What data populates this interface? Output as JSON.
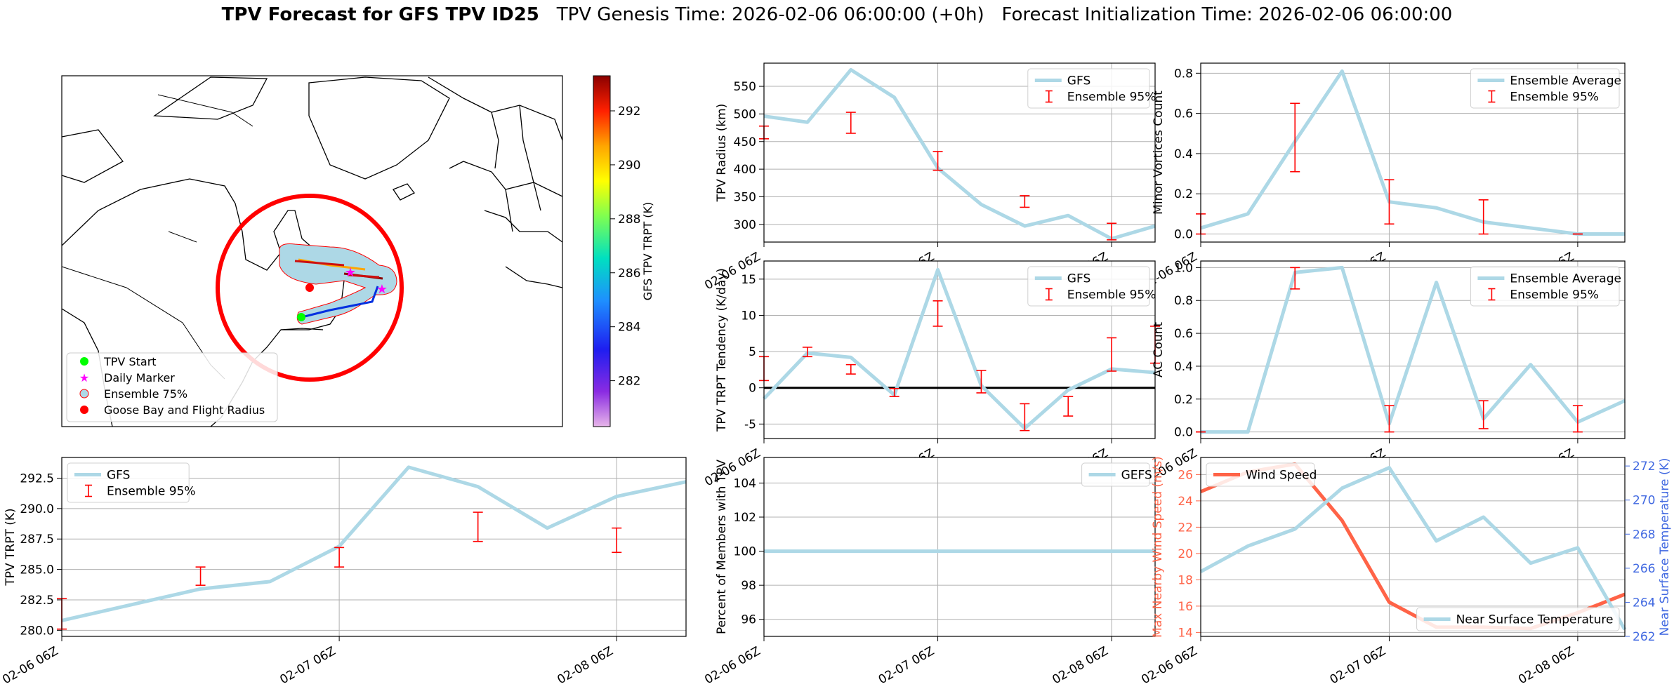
{
  "title": {
    "bold": "TPV Forecast for GFS TPV ID25",
    "genesis": "TPV Genesis Time: 2026-02-06 06:00:00 (+0h)",
    "init": "Forecast Initialization Time: 2026-02-06 06:00:00"
  },
  "colors": {
    "line": "#add8e6",
    "error": "#ff0000",
    "wind": "#ff6347",
    "temp_axis": "#4169e1",
    "zero": "#000000"
  },
  "map": {
    "legend": [
      "TPV Start",
      "Daily Marker",
      "Ensemble 75%",
      "Goose Bay and Flight Radius"
    ],
    "colorbar": {
      "label": "GFS TPV TRPT (K)",
      "ticks": [
        282,
        284,
        286,
        288,
        290,
        292
      ],
      "range": [
        280.3,
        293.3
      ]
    }
  },
  "chart_data": [
    {
      "id": "radius",
      "type": "line",
      "ylabel": "TPV Radius (km)",
      "xticks": [
        "02-06 06Z",
        "02-07 06Z",
        "02-08 06Z"
      ],
      "xtick_pos": [
        0,
        4,
        8
      ],
      "xlim": [
        0,
        9
      ],
      "ylim": [
        268,
        592
      ],
      "yticks": [
        300,
        350,
        400,
        450,
        500,
        550
      ],
      "legend": [
        "GFS",
        "Ensemble 95%"
      ],
      "legend_pos": "upper-right",
      "series": [
        {
          "name": "GFS",
          "x": [
            0,
            1,
            2,
            3,
            4,
            5,
            6,
            7,
            8,
            9
          ],
          "y": [
            496,
            485,
            580,
            530,
            402,
            336,
            297,
            316,
            274,
            297
          ]
        }
      ],
      "errorbars": [
        {
          "x": 0,
          "lo": 455,
          "hi": 478
        },
        {
          "x": 2,
          "lo": 465,
          "hi": 503
        },
        {
          "x": 4,
          "lo": 398,
          "hi": 432
        },
        {
          "x": 6,
          "lo": 331,
          "hi": 352
        },
        {
          "x": 8,
          "lo": 272,
          "hi": 302
        }
      ]
    },
    {
      "id": "minor",
      "type": "line",
      "ylabel": "Minor Vortices Count",
      "xticks": [
        "02-06 06Z",
        "02-07 06Z",
        "02-08 06Z"
      ],
      "xtick_pos": [
        0,
        4,
        8
      ],
      "xlim": [
        0,
        9
      ],
      "ylim": [
        -0.04,
        0.85
      ],
      "yticks": [
        0.0,
        0.2,
        0.4,
        0.6,
        0.8
      ],
      "legend": [
        "Ensemble Average",
        "Ensemble 95%"
      ],
      "legend_pos": "upper-right",
      "series": [
        {
          "name": "Ensemble Average",
          "x": [
            0,
            1,
            2,
            3,
            4,
            5,
            6,
            7,
            8,
            9
          ],
          "y": [
            0.03,
            0.1,
            0.46,
            0.81,
            0.16,
            0.13,
            0.06,
            0.03,
            0.0,
            0.0
          ]
        }
      ],
      "errorbars": [
        {
          "x": 0,
          "lo": 0.0,
          "hi": 0.1
        },
        {
          "x": 2,
          "lo": 0.31,
          "hi": 0.65
        },
        {
          "x": 4,
          "lo": 0.05,
          "hi": 0.27
        },
        {
          "x": 6,
          "lo": 0.0,
          "hi": 0.17
        },
        {
          "x": 8,
          "lo": 0.0,
          "hi": 0.0
        }
      ]
    },
    {
      "id": "tendency",
      "type": "line",
      "ylabel": "TPV TRPT Tendency (K/day)",
      "xticks": [
        "02-06 06Z",
        "02-07 06Z",
        "02-08 06Z"
      ],
      "xtick_pos": [
        0,
        4,
        8
      ],
      "xlim": [
        0,
        9
      ],
      "ylim": [
        -7,
        17.5
      ],
      "yticks": [
        -5,
        0,
        5,
        10,
        15
      ],
      "zero_line": true,
      "legend": [
        "GFS",
        "Ensemble 95%"
      ],
      "legend_pos": "upper-right",
      "series": [
        {
          "name": "GFS",
          "x": [
            0,
            1,
            2,
            3,
            4,
            5,
            6,
            7,
            8,
            9
          ],
          "y": [
            -1.5,
            4.8,
            4.2,
            -1.0,
            16.3,
            0.3,
            -5.6,
            -0.3,
            2.6,
            2.1
          ]
        }
      ],
      "errorbars": [
        {
          "x": 0,
          "lo": 1.0,
          "hi": 4.3
        },
        {
          "x": 1,
          "lo": 4.3,
          "hi": 5.6
        },
        {
          "x": 2,
          "lo": 1.9,
          "hi": 3.2
        },
        {
          "x": 3,
          "lo": -1.2,
          "hi": -0.1
        },
        {
          "x": 4,
          "lo": 8.5,
          "hi": 12.0
        },
        {
          "x": 5,
          "lo": -0.7,
          "hi": 2.4
        },
        {
          "x": 6,
          "lo": -5.9,
          "hi": -2.2
        },
        {
          "x": 7,
          "lo": -3.9,
          "hi": -1.2
        },
        {
          "x": 8,
          "lo": 2.3,
          "hi": 6.9
        },
        {
          "x": 9,
          "lo": 3.4,
          "hi": 8.5
        }
      ]
    },
    {
      "id": "ac",
      "type": "line",
      "ylabel": "AC Count",
      "xticks": [
        "02-06 06Z",
        "02-07 06Z",
        "02-08 06Z"
      ],
      "xtick_pos": [
        0,
        4,
        8
      ],
      "xlim": [
        0,
        9
      ],
      "ylim": [
        -0.04,
        1.04
      ],
      "yticks": [
        0.0,
        0.2,
        0.4,
        0.6,
        0.8,
        1.0
      ],
      "legend": [
        "Ensemble Average",
        "Ensemble 95%"
      ],
      "legend_pos": "upper-right",
      "series": [
        {
          "name": "Ensemble Average",
          "x": [
            0,
            1,
            2,
            3,
            4,
            5,
            6,
            7,
            8,
            9
          ],
          "y": [
            0.0,
            0.0,
            0.97,
            1.0,
            0.05,
            0.91,
            0.08,
            0.41,
            0.06,
            0.19
          ]
        }
      ],
      "errorbars": [
        {
          "x": 0,
          "lo": 0.0,
          "hi": 0.0
        },
        {
          "x": 2,
          "lo": 0.87,
          "hi": 1.0
        },
        {
          "x": 4,
          "lo": 0.0,
          "hi": 0.16
        },
        {
          "x": 6,
          "lo": 0.02,
          "hi": 0.19
        },
        {
          "x": 8,
          "lo": 0.0,
          "hi": 0.16
        }
      ]
    },
    {
      "id": "trpt",
      "type": "line",
      "ylabel": "TPV TRPT (K)",
      "xticks": [
        "02-06 06Z",
        "02-07 06Z",
        "02-08 06Z"
      ],
      "xtick_pos": [
        0,
        4,
        8
      ],
      "xlim": [
        0,
        9
      ],
      "ylim": [
        279.5,
        294.2
      ],
      "yticks": [
        280.0,
        282.5,
        285.0,
        287.5,
        290.0,
        292.5
      ],
      "legend": [
        "GFS",
        "Ensemble 95%"
      ],
      "legend_pos": "upper-left",
      "series": [
        {
          "name": "GFS",
          "x": [
            0,
            1,
            2,
            3,
            4,
            5,
            6,
            7,
            8,
            9
          ],
          "y": [
            280.8,
            282.1,
            283.4,
            284.0,
            286.9,
            293.4,
            291.8,
            288.4,
            291.0,
            292.2
          ]
        }
      ],
      "errorbars": [
        {
          "x": 0,
          "lo": 280.1,
          "hi": 282.6
        },
        {
          "x": 2,
          "lo": 283.7,
          "hi": 285.2
        },
        {
          "x": 4,
          "lo": 285.2,
          "hi": 286.8
        },
        {
          "x": 6,
          "lo": 287.3,
          "hi": 289.7
        },
        {
          "x": 8,
          "lo": 286.4,
          "hi": 288.4
        }
      ]
    },
    {
      "id": "percent",
      "type": "line",
      "ylabel": "Percent of Members with TPV",
      "xticks": [
        "02-06 06Z",
        "02-07 06Z",
        "02-08 06Z"
      ],
      "xtick_pos": [
        0,
        4,
        8
      ],
      "xlim": [
        0,
        9
      ],
      "ylim": [
        95,
        105.5
      ],
      "yticks": [
        96,
        98,
        100,
        102,
        104
      ],
      "legend": [
        "GEFS"
      ],
      "legend_pos": "upper-right",
      "series": [
        {
          "name": "GEFS",
          "x": [
            0,
            9
          ],
          "y": [
            100,
            100
          ]
        }
      ],
      "errorbars": []
    },
    {
      "id": "wind",
      "type": "line",
      "ylabel": "Max Nearby Wind Speed (m/s)",
      "y2label": "Near Surface Temperature (K)",
      "xticks": [
        "02-06 06Z",
        "02-07 06Z",
        "02-08 06Z"
      ],
      "xtick_pos": [
        0,
        4,
        8
      ],
      "xlim": [
        0,
        9
      ],
      "ylim": [
        13.7,
        27.3
      ],
      "yticks": [
        14,
        16,
        18,
        20,
        22,
        24,
        26
      ],
      "y2lim": [
        262,
        272.5
      ],
      "y2ticks": [
        262,
        264,
        266,
        268,
        270,
        272
      ],
      "legend": [
        "Wind Speed"
      ],
      "legend_pos": "upper-left",
      "legend2": [
        "Near Surface Temperature"
      ],
      "legend2_pos": "lower-right",
      "series": [
        {
          "name": "Wind Speed",
          "axis": "left",
          "x": [
            0,
            1,
            2,
            3,
            4,
            5,
            6,
            7,
            8,
            9
          ],
          "y": [
            24.7,
            26.2,
            26.8,
            22.5,
            16.3,
            14.4,
            14.4,
            14.3,
            15.5,
            16.9
          ]
        },
        {
          "name": "Near Surface Temperature",
          "axis": "right",
          "x": [
            0,
            1,
            2,
            3,
            4,
            5,
            6,
            7,
            8,
            9
          ],
          "y": [
            265.8,
            267.3,
            268.3,
            270.7,
            271.9,
            267.6,
            269.0,
            266.3,
            267.2,
            262.4
          ]
        }
      ],
      "errorbars": []
    }
  ]
}
